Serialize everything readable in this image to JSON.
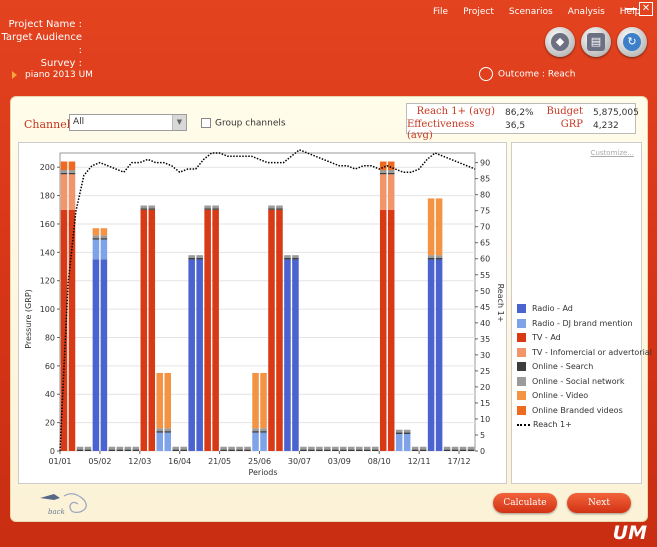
{
  "header": {
    "project_name_label": "Project Name :",
    "target_audience_label": "Target Audience :",
    "survey_label": "Survey :",
    "project_item": "piano 2013 UM"
  },
  "menu": [
    "File",
    "Project",
    "Scenarios",
    "Analysis",
    "Help"
  ],
  "window_controls": {
    "minimize": "—",
    "close": "✕"
  },
  "toolbar_icons": [
    "diamond-arrow-icon",
    "document-icon",
    "globe-arrow-icon"
  ],
  "outcome": {
    "label": "Outcome :",
    "value": "Reach"
  },
  "channels": {
    "label": "Channels",
    "selected": "All",
    "group_label": "Group channels"
  },
  "metrics": {
    "reach_label": "Reach 1+ (avg)",
    "reach_value": "86,2%",
    "eff_label": "Effectiveness (avg)",
    "eff_value": "36,5",
    "budget_label": "Budget",
    "budget_value": "5,875,005",
    "grp_label": "GRP",
    "grp_value": "4,232"
  },
  "customize_label": "Customize...",
  "legend": [
    {
      "label": "Radio - Ad",
      "color": "#4a63cf"
    },
    {
      "label": "Radio - DJ brand mention",
      "color": "#7fa3e8"
    },
    {
      "label": "TV - Ad",
      "color": "#d83a16"
    },
    {
      "label": "TV - Infomercial or advertorial",
      "color": "#f2956a"
    },
    {
      "label": "Online - Search",
      "color": "#3d3d3d"
    },
    {
      "label": "Online - Social network",
      "color": "#9b9b9b"
    },
    {
      "label": "Online - Video",
      "color": "#f39445"
    },
    {
      "label": "Online Branded videos",
      "color": "#ee6a1e"
    },
    {
      "label": "Reach 1+",
      "color": "#000000",
      "line": true
    }
  ],
  "buttons": {
    "calculate": "Calculate",
    "next": "Next",
    "back": "back"
  },
  "brand": "UM",
  "chart_data": {
    "type": "bar",
    "stacked": true,
    "xlabel": "Periods",
    "ylabel": "Pressure (GRP)",
    "y2label": "Reach 1+",
    "ylim": [
      0,
      210
    ],
    "y2lim": [
      0,
      93
    ],
    "yticks": [
      0,
      20,
      40,
      60,
      80,
      100,
      120,
      140,
      160,
      180,
      200
    ],
    "y2ticks": [
      0,
      5,
      10,
      15,
      20,
      25,
      30,
      35,
      40,
      45,
      50,
      55,
      60,
      65,
      70,
      75,
      80,
      85,
      90
    ],
    "xtick_labels": [
      "01/01",
      "05/02",
      "12/03",
      "16/04",
      "21/05",
      "25/06",
      "30/07",
      "03/09",
      "08/10",
      "12/11",
      "17/12"
    ],
    "xtick_weeks": [
      0,
      5,
      10,
      15,
      20,
      25,
      30,
      35,
      40,
      45,
      50
    ],
    "series": [
      {
        "name": "Radio - Ad",
        "color": "#4a63cf",
        "values": [
          0,
          0,
          0,
          0,
          135,
          135,
          0,
          0,
          0,
          0,
          0,
          0,
          0,
          0,
          0,
          0,
          135,
          135,
          0,
          0,
          0,
          0,
          0,
          0,
          0,
          0,
          0,
          0,
          135,
          135,
          0,
          0,
          0,
          0,
          0,
          0,
          0,
          0,
          0,
          0,
          0,
          0,
          0,
          0,
          0,
          0,
          135,
          135,
          0,
          0,
          0,
          0
        ]
      },
      {
        "name": "Radio - DJ brand mention",
        "color": "#7fa3e8",
        "values": [
          0,
          0,
          0,
          0,
          14,
          14,
          0,
          0,
          0,
          0,
          0,
          0,
          13,
          13,
          0,
          0,
          0,
          0,
          0,
          0,
          0,
          0,
          0,
          0,
          13,
          13,
          0,
          0,
          0,
          0,
          0,
          0,
          0,
          0,
          0,
          0,
          0,
          0,
          0,
          0,
          0,
          0,
          12,
          12,
          0,
          0,
          0,
          0,
          0,
          0,
          0,
          0
        ]
      },
      {
        "name": "TV - Ad",
        "color": "#d83a16",
        "values": [
          170,
          170,
          0,
          0,
          0,
          0,
          0,
          0,
          0,
          0,
          170,
          170,
          0,
          0,
          0,
          0,
          0,
          0,
          170,
          170,
          0,
          0,
          0,
          0,
          0,
          0,
          170,
          170,
          0,
          0,
          0,
          0,
          0,
          0,
          0,
          0,
          0,
          0,
          0,
          0,
          170,
          170,
          0,
          0,
          0,
          0,
          0,
          0,
          0,
          0,
          0,
          0
        ]
      },
      {
        "name": "TV - Infomercial or advertorial",
        "color": "#f2956a",
        "values": [
          25,
          25,
          0,
          0,
          0,
          0,
          0,
          0,
          0,
          0,
          0,
          0,
          0,
          0,
          0,
          0,
          0,
          0,
          0,
          0,
          0,
          0,
          0,
          0,
          0,
          0,
          0,
          0,
          0,
          0,
          0,
          0,
          0,
          0,
          0,
          0,
          0,
          0,
          0,
          0,
          25,
          25,
          0,
          0,
          0,
          0,
          0,
          0,
          0,
          0,
          0,
          0
        ]
      },
      {
        "name": "Online - Search",
        "color": "#3d3d3d",
        "values": [
          1,
          1,
          1,
          1,
          1,
          1,
          1,
          1,
          1,
          1,
          1,
          1,
          1,
          1,
          1,
          1,
          1,
          1,
          1,
          1,
          1,
          1,
          1,
          1,
          1,
          1,
          1,
          1,
          1,
          1,
          1,
          1,
          1,
          1,
          1,
          1,
          1,
          1,
          1,
          1,
          1,
          1,
          1,
          1,
          1,
          1,
          1,
          1,
          1,
          1,
          1,
          1
        ]
      },
      {
        "name": "Online - Social network",
        "color": "#9b9b9b",
        "values": [
          2,
          2,
          2,
          2,
          2,
          2,
          2,
          2,
          2,
          2,
          2,
          2,
          2,
          2,
          2,
          2,
          2,
          2,
          2,
          2,
          2,
          2,
          2,
          2,
          2,
          2,
          2,
          2,
          2,
          2,
          2,
          2,
          2,
          2,
          2,
          2,
          2,
          2,
          2,
          2,
          2,
          2,
          2,
          2,
          2,
          2,
          2,
          2,
          2,
          2,
          2,
          2
        ]
      },
      {
        "name": "Online - Video",
        "color": "#f39445",
        "values": [
          0,
          0,
          0,
          0,
          5,
          5,
          0,
          0,
          0,
          0,
          0,
          0,
          39,
          39,
          0,
          0,
          0,
          0,
          0,
          0,
          0,
          0,
          0,
          0,
          39,
          39,
          0,
          0,
          0,
          0,
          0,
          0,
          0,
          0,
          0,
          0,
          0,
          0,
          0,
          0,
          0,
          0,
          0,
          0,
          0,
          0,
          40,
          40,
          0,
          0,
          0,
          0
        ]
      },
      {
        "name": "Online Branded videos",
        "color": "#ee6a1e",
        "values": [
          6,
          6,
          0,
          0,
          0,
          0,
          0,
          0,
          0,
          0,
          0,
          0,
          0,
          0,
          0,
          0,
          0,
          0,
          0,
          0,
          0,
          0,
          0,
          0,
          0,
          0,
          0,
          0,
          0,
          0,
          0,
          0,
          0,
          0,
          0,
          0,
          0,
          0,
          0,
          0,
          6,
          6,
          0,
          0,
          0,
          0,
          0,
          0,
          0,
          0,
          0,
          0
        ]
      }
    ],
    "reach": {
      "name": "Reach 1+",
      "values": [
        0,
        52,
        75,
        86,
        89,
        90,
        89,
        88,
        87,
        90,
        90,
        91,
        90,
        90,
        89,
        87,
        88,
        88,
        91,
        93,
        93,
        92,
        92,
        92,
        92,
        91,
        90,
        90,
        90,
        92,
        94,
        93,
        92,
        91,
        90,
        89,
        89,
        88,
        89,
        89,
        88,
        89,
        88,
        87,
        87,
        88,
        91,
        93,
        92,
        91,
        90,
        89,
        88
      ]
    }
  }
}
